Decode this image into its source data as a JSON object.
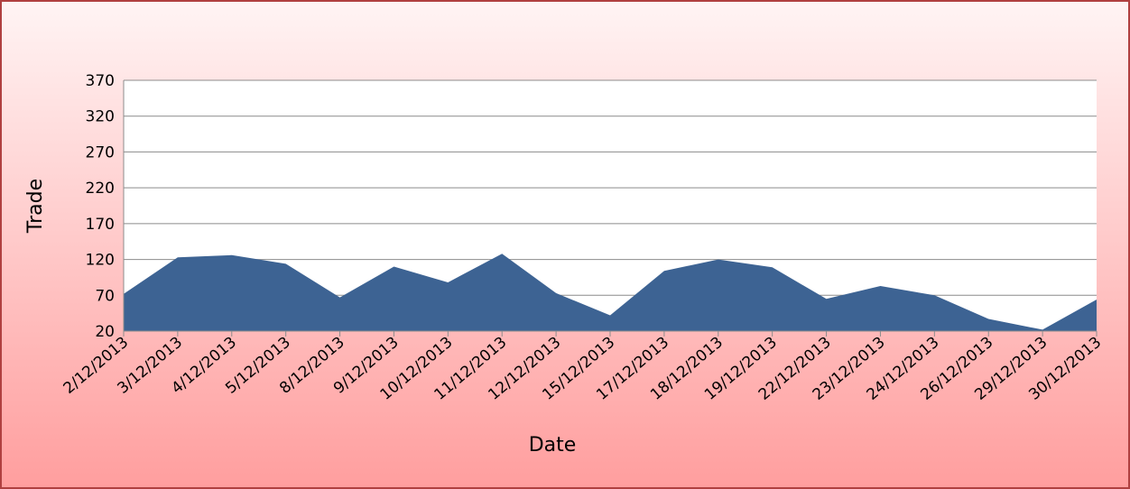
{
  "chart_data": {
    "type": "area",
    "x_label": "Date",
    "y_label": "Trade",
    "categories": [
      "2/12/2013",
      "3/12/2013",
      "4/12/2013",
      "5/12/2013",
      "8/12/2013",
      "9/12/2013",
      "10/12/2013",
      "11/12/2013",
      "12/12/2013",
      "15/12/2013",
      "17/12/2013",
      "18/12/2013",
      "19/12/2013",
      "22/12/2013",
      "23/12/2013",
      "24/12/2013",
      "26/12/2013",
      "29/12/2013",
      "30/12/2013"
    ],
    "values": [
      72,
      123,
      126,
      114,
      67,
      110,
      88,
      128,
      73,
      42,
      104,
      120,
      109,
      65,
      83,
      70,
      37,
      22,
      64
    ],
    "color": "#3d6393",
    "ylim": [
      20,
      370
    ],
    "yticks": [
      20,
      70,
      120,
      170,
      220,
      270,
      320,
      370
    ],
    "grid": true
  }
}
